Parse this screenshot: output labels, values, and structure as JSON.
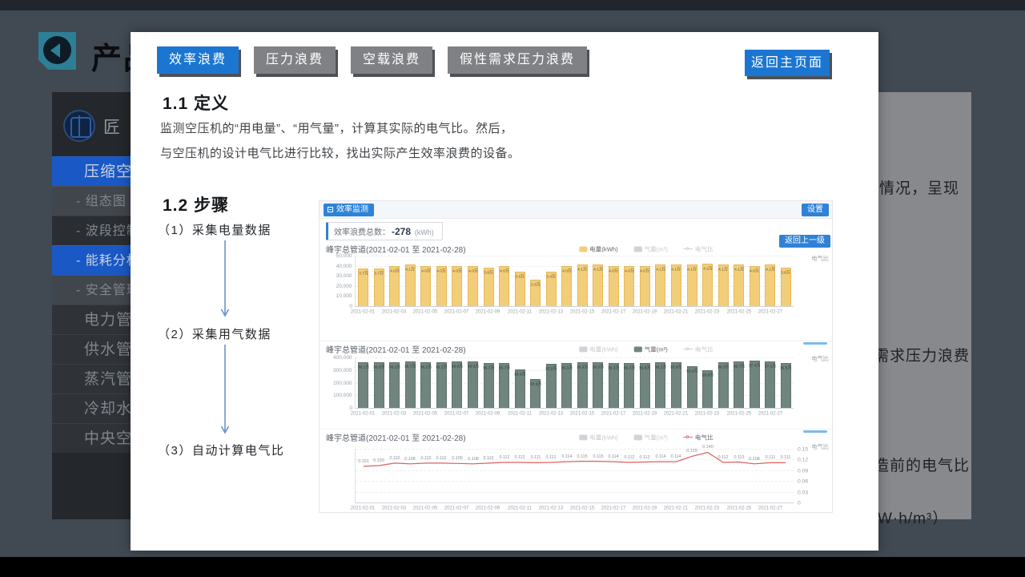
{
  "colors": {
    "accent_blue": "#1b76d2",
    "chip_blue": "#2e82d8",
    "sidebar_active": "#1a58c6",
    "bar_electric": "#f3ce79",
    "bar_gas": "#6f857e",
    "line_ratio": "#dd5f5c"
  },
  "slide": {
    "title_partial": "产品",
    "fragments": [
      "情况，呈现",
      "需求压力浪费",
      "造前的电气比",
      "W·h/m³）"
    ]
  },
  "sidebar": {
    "brand": "匠",
    "items": [
      {
        "label": "压缩空气",
        "type": "main",
        "active": true
      },
      {
        "label": "- 组态图",
        "type": "sub",
        "shade": "light"
      },
      {
        "label": "- 波段控制",
        "type": "sub",
        "shade": "dark"
      },
      {
        "label": "- 能耗分析",
        "type": "sub",
        "active": true
      },
      {
        "label": "- 安全管理",
        "type": "sub",
        "shade": "light"
      },
      {
        "label": "电力管理",
        "type": "main"
      },
      {
        "label": "供水管理",
        "type": "main"
      },
      {
        "label": "蒸汽管理",
        "type": "main"
      },
      {
        "label": "冷却水管理",
        "type": "main"
      },
      {
        "label": "中央空调管理",
        "type": "main"
      }
    ]
  },
  "panel": {
    "tabs": [
      {
        "label": "效率浪费",
        "active": true
      },
      {
        "label": "压力浪费",
        "active": false
      },
      {
        "label": "空载浪费",
        "active": false
      },
      {
        "label": "假性需求压力浪费",
        "active": false
      }
    ],
    "return_button": "返回主页面",
    "def_heading": "1.1 定义",
    "def_line1": "监测空压机的“用电量”、“用气量”，计算其实际的电气比。然后，",
    "def_line2": "与空压机的设计电气比进行比较，找出实际产生效率浪费的设备。",
    "steps_heading": "1.2 步骤",
    "step1": "（1）采集电量数据",
    "step2": "（2）采集用气数据",
    "step3": "（3）自动计算电气比"
  },
  "dashboard": {
    "page_chip": "效率监测",
    "settings_chip": "设置",
    "summary_prefix": "效率浪费总数：",
    "summary_value": "-278",
    "summary_unit": "(kWh)",
    "back_button": "返回上一级",
    "right_axis_label": "电气比"
  },
  "chart_data": [
    {
      "type": "bar",
      "title": "峰宇总管道(2021-02-01 至 2021-02-28)",
      "series_name": "电量(kWh)",
      "color": "#f3ce79",
      "border_color": "#e7b85c",
      "categories": [
        "2021-02-01",
        "2021-02-02",
        "2021-02-03",
        "2021-02-04",
        "2021-02-05",
        "2021-02-06",
        "2021-02-07",
        "2021-02-08",
        "2021-02-09",
        "2021-02-10",
        "2021-02-11",
        "2021-02-12",
        "2021-02-13",
        "2021-02-14",
        "2021-02-15",
        "2021-02-16",
        "2021-02-17",
        "2021-02-18",
        "2021-02-19",
        "2021-02-20",
        "2021-02-21",
        "2021-02-22",
        "2021-02-23",
        "2021-02-24",
        "2021-02-25",
        "2021-02-26",
        "2021-02-27",
        "2021-02-28"
      ],
      "values": [
        37000,
        37000,
        40000,
        41000,
        40000,
        40000,
        40000,
        40000,
        38000,
        40000,
        34000,
        26000,
        34000,
        40000,
        41000,
        41000,
        40000,
        40000,
        40000,
        41000,
        41000,
        41000,
        42000,
        41000,
        41000,
        40000,
        41000,
        38000
      ],
      "bar_labels": [
        "3.7万",
        "3.7万",
        "4.0万",
        "4.1万",
        "4.0万",
        "4.0万",
        "4.0万",
        "4.0万",
        "3.8万",
        "4.0万",
        "3.4万",
        "2.6万",
        "3.4万",
        "4.0万",
        "4.1万",
        "4.1万",
        "4.0万",
        "4.0万",
        "4.0万",
        "4.1万",
        "4.1万",
        "4.1万",
        "4.2万",
        "4.1万",
        "4.1万",
        "4.0万",
        "4.1万",
        "3.8万"
      ],
      "ylim": [
        0,
        50000
      ],
      "yticks": [
        "50,000",
        "40,000",
        "30,000",
        "20,000",
        "10,000",
        "0"
      ],
      "x_tick_labels": [
        "2021-02-01",
        "2021-02-03",
        "2021-02-05",
        "2021-02-07",
        "2021-02-09",
        "2021-02-11",
        "2021-02-13",
        "2021-02-15",
        "2021-02-17",
        "2021-02-19",
        "2021-02-21",
        "2021-02-23",
        "2021-02-25",
        "2021-02-27"
      ],
      "legend": [
        {
          "label": "电量(kWh)",
          "marker": "rect",
          "active": true,
          "color": "#f3ce79"
        },
        {
          "label": "气量(m³)",
          "marker": "rect",
          "active": false,
          "color": "#cfd3d7"
        },
        {
          "label": "电气比",
          "marker": "line",
          "active": false,
          "color": "#c6cacd"
        }
      ]
    },
    {
      "type": "bar",
      "title": "峰宇总管道(2021-02-01 至 2021-02-28)",
      "series_name": "气量(m³)",
      "color": "#6f857e",
      "border_color": "#5f736d",
      "categories": [
        "2021-02-01",
        "2021-02-02",
        "2021-02-03",
        "2021-02-04",
        "2021-02-05",
        "2021-02-06",
        "2021-02-07",
        "2021-02-08",
        "2021-02-09",
        "2021-02-10",
        "2021-02-11",
        "2021-02-12",
        "2021-02-13",
        "2021-02-14",
        "2021-02-15",
        "2021-02-16",
        "2021-02-17",
        "2021-02-18",
        "2021-02-19",
        "2021-02-20",
        "2021-02-21",
        "2021-02-22",
        "2021-02-23",
        "2021-02-24",
        "2021-02-25",
        "2021-02-26",
        "2021-02-27",
        "2021-02-28"
      ],
      "values": [
        361000,
        360000,
        362000,
        367000,
        362000,
        362000,
        366000,
        366000,
        357000,
        357000,
        304000,
        229000,
        352000,
        353000,
        359000,
        360000,
        353000,
        357000,
        358000,
        361000,
        359000,
        332000,
        298000,
        363000,
        367000,
        374000,
        371000,
        355000
      ],
      "bar_labels": [
        "36.1万",
        "36.0万",
        "36.2万",
        "36.7万",
        "36.2万",
        "36.2万",
        "36.6万",
        "36.6万",
        "35.7万",
        "35.7万",
        "30.4万",
        "22.9万",
        "35.2万",
        "35.3万",
        "35.9万",
        "36.0万",
        "35.3万",
        "35.7万",
        "35.8万",
        "36.1万",
        "35.9万",
        "33.2万",
        "29.8万",
        "36.3万",
        "36.7万",
        "37.4万",
        "37.1万",
        "35.5万"
      ],
      "ylim": [
        0,
        400000
      ],
      "yticks": [
        "400,000",
        "300,000",
        "200,000",
        "100,000",
        "0"
      ],
      "x_tick_labels": [
        "2021-02-01",
        "2021-02-03",
        "2021-02-05",
        "2021-02-07",
        "2021-02-09",
        "2021-02-11",
        "2021-02-13",
        "2021-02-15",
        "2021-02-17",
        "2021-02-19",
        "2021-02-21",
        "2021-02-23",
        "2021-02-25",
        "2021-02-27"
      ],
      "legend": [
        {
          "label": "电量(kWh)",
          "marker": "rect",
          "active": false,
          "color": "#cfd3d7"
        },
        {
          "label": "气量(m³)",
          "marker": "rect",
          "active": true,
          "color": "#6f857e"
        },
        {
          "label": "电气比",
          "marker": "line",
          "active": false,
          "color": "#c6cacd"
        }
      ]
    },
    {
      "type": "line",
      "title": "峰宇总管道(2021-02-01 至 2021-02-28)",
      "series_name": "电气比",
      "color": "#dd5f5c",
      "categories": [
        "2021-02-01",
        "2021-02-02",
        "2021-02-03",
        "2021-02-04",
        "2021-02-05",
        "2021-02-06",
        "2021-02-07",
        "2021-02-08",
        "2021-02-09",
        "2021-02-10",
        "2021-02-11",
        "2021-02-12",
        "2021-02-13",
        "2021-02-14",
        "2021-02-15",
        "2021-02-16",
        "2021-02-17",
        "2021-02-18",
        "2021-02-19",
        "2021-02-20",
        "2021-02-21",
        "2021-02-22",
        "2021-02-23",
        "2021-02-24",
        "2021-02-25",
        "2021-02-26",
        "2021-02-27",
        "2021-02-28"
      ],
      "values": [
        0.101,
        0.103,
        0.11,
        0.108,
        0.11,
        0.11,
        0.109,
        0.108,
        0.11,
        0.112,
        0.112,
        0.111,
        0.112,
        0.114,
        0.115,
        0.115,
        0.114,
        0.112,
        0.113,
        0.114,
        0.114,
        0.129,
        0.14,
        0.112,
        0.113,
        0.108,
        0.111,
        0.111
      ],
      "point_labels": [
        "0.101",
        "0.103",
        "0.110",
        "0.108",
        "0.110",
        "0.110",
        "0.109",
        "0.108",
        "0.110",
        "0.112",
        "0.112",
        "0.111",
        "0.112",
        "0.114",
        "0.115",
        "0.115",
        "0.114",
        "0.112",
        "0.113",
        "0.114",
        "0.114",
        "0.129",
        "0.140",
        "0.112",
        "0.113",
        "0.108",
        "0.111",
        "0.111"
      ],
      "ylim": [
        0,
        0.15
      ],
      "yticks_right": [
        "0.15",
        "0.12",
        "0.09",
        "0.06",
        "0.03",
        "0"
      ],
      "x_tick_labels": [
        "2021-02-01",
        "2021-02-03",
        "2021-02-05",
        "2021-02-07",
        "2021-02-09",
        "2021-02-11",
        "2021-02-13",
        "2021-02-15",
        "2021-02-17",
        "2021-02-19",
        "2021-02-21",
        "2021-02-23",
        "2021-02-25",
        "2021-02-27"
      ],
      "legend": [
        {
          "label": "电量(kWh)",
          "marker": "rect",
          "active": false,
          "color": "#cfd3d7"
        },
        {
          "label": "气量(m³)",
          "marker": "rect",
          "active": false,
          "color": "#cfd3d7"
        },
        {
          "label": "电气比",
          "marker": "line",
          "active": true,
          "color": "#dd5f5c"
        }
      ]
    }
  ]
}
